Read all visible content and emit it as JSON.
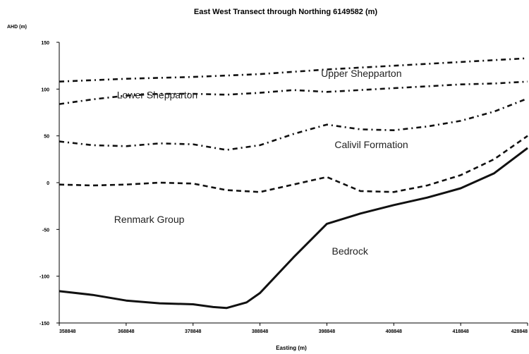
{
  "chart_data": {
    "type": "line",
    "title": "East West Transect through Northing 6149582 (m)",
    "ylabel": "AHD (m)",
    "xlabel": "Easting (m)",
    "xlim": [
      358848,
      428848
    ],
    "ylim": [
      -150,
      150
    ],
    "x_ticks": [
      "358848",
      "368848",
      "378848",
      "388848",
      "398848",
      "408848",
      "418848",
      "428848"
    ],
    "y_ticks": [
      "150",
      "100",
      "50",
      "0",
      "-50",
      "-100",
      "-150"
    ],
    "grid": false,
    "annotations": [
      {
        "text": "Upper Shepparton",
        "x": 404000,
        "y": 113
      },
      {
        "text": "Lower Shepparton",
        "x": 373500,
        "y": 90
      },
      {
        "text": "Calivil Formation",
        "x": 405500,
        "y": 37
      },
      {
        "text": "Renmark Group",
        "x": 372300,
        "y": -43
      },
      {
        "text": "Bedrock",
        "x": 402300,
        "y": -77
      }
    ],
    "series": [
      {
        "style": "dash-dot",
        "x": [
          358848,
          368848,
          378848,
          388848,
          398848,
          408848,
          418848,
          428848
        ],
        "y": [
          108,
          111,
          113,
          116,
          121,
          125,
          129,
          133
        ]
      },
      {
        "style": "dash-dot",
        "x": [
          358848,
          363848,
          368848,
          373848,
          378848,
          383848,
          388848,
          393848,
          398848,
          403848,
          408848,
          413848,
          418848,
          423848,
          428848
        ],
        "y": [
          84,
          89,
          93,
          95,
          95,
          94,
          96,
          99,
          97,
          99,
          101,
          103,
          105,
          106,
          108
        ]
      },
      {
        "style": "dash-dot",
        "x": [
          358848,
          363848,
          368848,
          373848,
          378848,
          383848,
          388848,
          393848,
          398848,
          403848,
          408848,
          413848,
          418848,
          423848,
          428848
        ],
        "y": [
          44,
          40,
          39,
          42,
          41,
          35,
          40,
          52,
          62,
          57,
          56,
          60,
          66,
          76,
          90
        ]
      },
      {
        "style": "dashed",
        "x": [
          358848,
          363848,
          368848,
          373848,
          378848,
          383848,
          388848,
          393848,
          398848,
          403848,
          408848,
          413848,
          418848,
          423848,
          428848
        ],
        "y": [
          -2,
          -3,
          -2,
          0,
          -1,
          -8,
          -10,
          -2,
          6,
          -9,
          -10,
          -3,
          8,
          25,
          50
        ]
      },
      {
        "style": "solid",
        "x": [
          358848,
          363848,
          368848,
          373848,
          378848,
          381848,
          383848,
          386848,
          388848,
          393848,
          398848,
          403848,
          408848,
          413848,
          418848,
          423848,
          428848
        ],
        "y": [
          -116,
          -120,
          -126,
          -129,
          -130,
          -133,
          -134,
          -128,
          -118,
          -80,
          -44,
          -33,
          -24,
          -16,
          -6,
          10,
          37
        ]
      }
    ]
  }
}
